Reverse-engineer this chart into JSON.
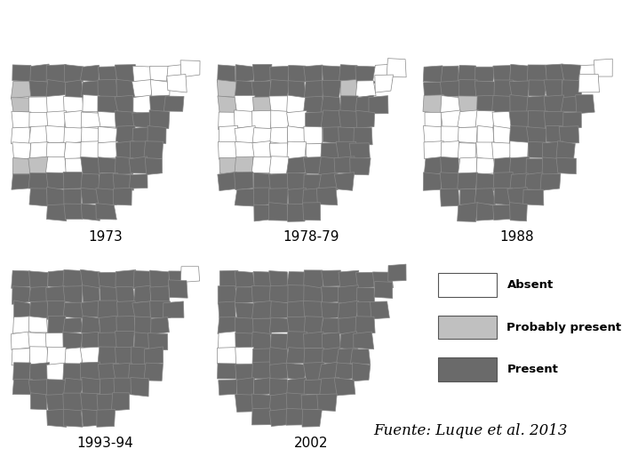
{
  "years": [
    "1973",
    "1978-79",
    "1988",
    "1993-94",
    "2002"
  ],
  "legend_labels": [
    "Absent",
    "Probably present",
    "Present"
  ],
  "legend_colors": [
    "#ffffff",
    "#c0c0c0",
    "#6a6a6a"
  ],
  "background_color": "#ffffff",
  "text_color": "#000000",
  "fuente_text": "Fuente: Luque et al. 2013",
  "present_color": "#6a6a6a",
  "probably_color": "#c0c0c0",
  "absent_color": "#ffffff",
  "edge_color": "#888888",
  "label_fontsize": 11,
  "fuente_fontsize": 12
}
